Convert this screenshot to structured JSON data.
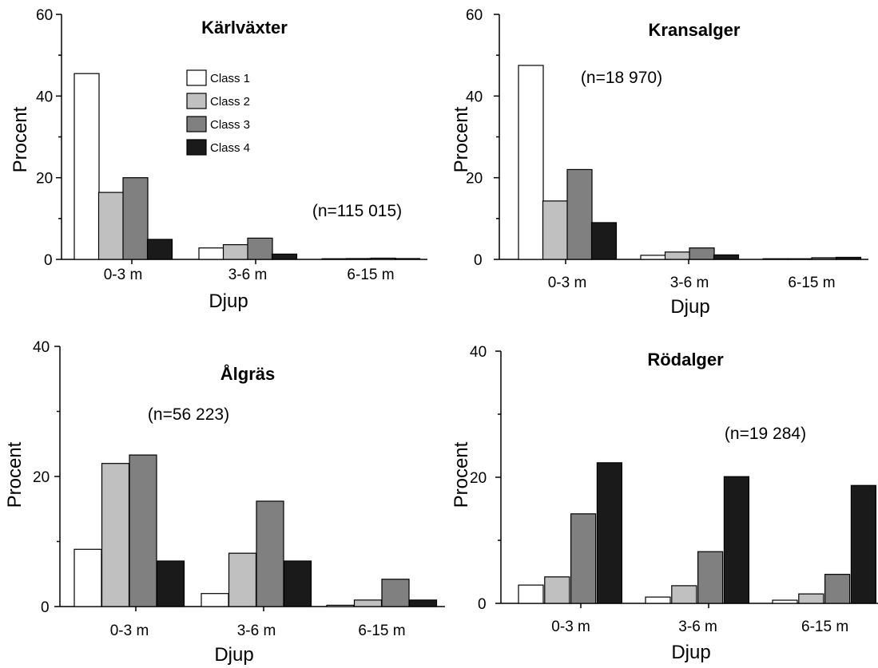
{
  "chart_data": [
    {
      "type": "bar",
      "title": "Kärlväxter",
      "n_label": "(n=115 015)",
      "xlabel": "Djup",
      "ylabel": "Procent",
      "categories": [
        "0-3 m",
        "3-6 m",
        "6-15 m"
      ],
      "ylim": [
        0,
        60
      ],
      "yticks": [
        "0",
        "20",
        "40",
        "60"
      ],
      "legend": "top-center",
      "series": [
        {
          "name": "Class 1",
          "values": [
            45.5,
            2.8,
            0.1
          ],
          "color": "#ffffff"
        },
        {
          "name": "Class 2",
          "values": [
            16.4,
            3.6,
            0.2
          ],
          "color": "#c0c0c0"
        },
        {
          "name": "Class 3",
          "values": [
            20.0,
            5.2,
            0.3
          ],
          "color": "#808080"
        },
        {
          "name": "Class 4",
          "values": [
            4.9,
            1.3,
            0.2
          ],
          "color": "#1a1a1a"
        }
      ]
    },
    {
      "type": "bar",
      "title": "Kransalger",
      "n_label": "(n=18 970)",
      "xlabel": "Djup",
      "ylabel": "Procent",
      "categories": [
        "0-3 m",
        "3-6 m",
        "6-15 m"
      ],
      "ylim": [
        0,
        60
      ],
      "yticks": [
        "0",
        "20",
        "40",
        "60"
      ],
      "series": [
        {
          "values": [
            47.5,
            1.0,
            0.1
          ],
          "color": "#ffffff"
        },
        {
          "values": [
            14.3,
            1.8,
            0.1
          ],
          "color": "#c0c0c0"
        },
        {
          "values": [
            22.0,
            2.8,
            0.4
          ],
          "color": "#808080"
        },
        {
          "values": [
            9.0,
            1.1,
            0.5
          ],
          "color": "#1a1a1a"
        }
      ]
    },
    {
      "type": "bar",
      "title": "Ålgräs",
      "n_label": "(n=56 223)",
      "xlabel": "Djup",
      "ylabel": "Procent",
      "categories": [
        "0-3 m",
        "3-6 m",
        "6-15 m"
      ],
      "ylim": [
        0,
        40
      ],
      "yticks": [
        "0",
        "20",
        "40"
      ],
      "series": [
        {
          "values": [
            8.8,
            2.0,
            0.2
          ],
          "color": "#ffffff"
        },
        {
          "values": [
            22.0,
            8.2,
            1.0
          ],
          "color": "#c0c0c0"
        },
        {
          "values": [
            23.3,
            16.2,
            4.2
          ],
          "color": "#808080"
        },
        {
          "values": [
            7.0,
            7.0,
            1.0
          ],
          "color": "#1a1a1a"
        }
      ]
    },
    {
      "type": "bar",
      "title": "Rödalger",
      "n_label": "(n=19 284)",
      "xlabel": "Djup",
      "ylabel": "Procent",
      "categories": [
        "0-3 m",
        "3-6 m",
        "6-15 m"
      ],
      "ylim": [
        0,
        40
      ],
      "yticks": [
        "0",
        "20",
        "40"
      ],
      "series": [
        {
          "values": [
            2.9,
            1.0,
            0.5
          ],
          "color": "#ffffff"
        },
        {
          "values": [
            4.2,
            2.8,
            1.5
          ],
          "color": "#c0c0c0"
        },
        {
          "values": [
            14.2,
            8.2,
            4.6
          ],
          "color": "#808080"
        },
        {
          "values": [
            22.3,
            20.1,
            18.7
          ],
          "color": "#1a1a1a"
        }
      ]
    }
  ]
}
